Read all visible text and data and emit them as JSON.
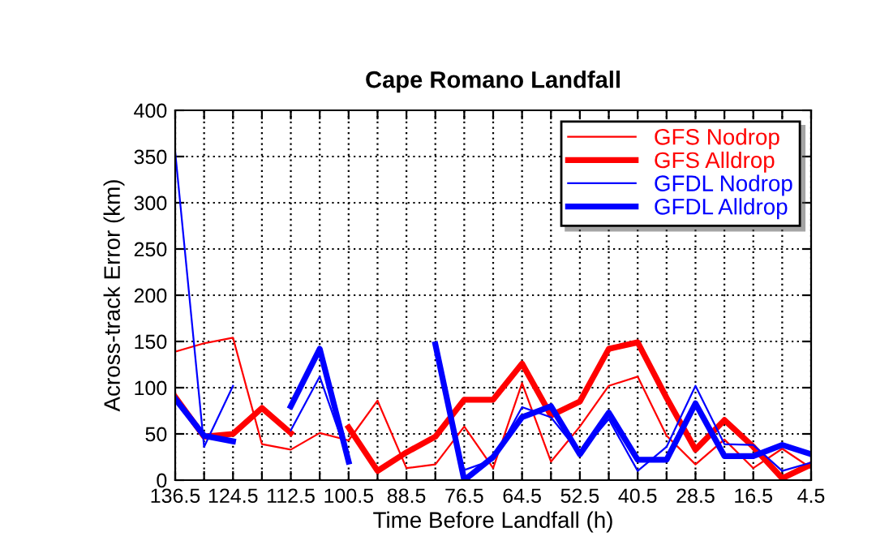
{
  "chart_data": {
    "type": "line",
    "title": "Cape Romano Landfall",
    "xlabel": "Time Before Landfall (h)",
    "ylabel": "Across-track Error (km)",
    "x": [
      136.5,
      130.5,
      124.5,
      118.5,
      112.5,
      106.5,
      100.5,
      94.5,
      88.5,
      82.5,
      76.5,
      70.5,
      64.5,
      58.5,
      52.5,
      46.5,
      40.5,
      34.5,
      28.5,
      22.5,
      16.5,
      10.5,
      4.5
    ],
    "series": [
      {
        "name": "GFS Nodrop",
        "color": "#ff0000",
        "values": [
          139,
          148,
          154,
          39,
          33,
          51,
          43,
          86,
          13,
          17,
          58,
          13,
          105,
          20,
          58,
          102,
          112,
          48,
          17,
          44,
          13,
          34,
          13
        ]
      },
      {
        "name": "GFS Alldrop",
        "color": "#ff0000",
        "values": [
          90,
          47,
          50,
          78,
          51,
          null,
          57,
          10,
          30,
          47,
          87,
          87,
          126,
          70,
          85,
          142,
          149,
          89,
          33,
          65,
          36,
          2,
          17
        ]
      },
      {
        "name": "GFDL Nodrop",
        "color": "#0000ff",
        "values": [
          355,
          36,
          102,
          null,
          54,
          112,
          22,
          null,
          null,
          null,
          11,
          22,
          79,
          68,
          29,
          66,
          10,
          36,
          102,
          39,
          38,
          10,
          19
        ]
      },
      {
        "name": "GFDL Alldrop",
        "color": "#0000ff",
        "values": [
          88,
          48,
          42,
          null,
          80,
          142,
          20,
          null,
          null,
          147,
          0,
          25,
          68,
          80,
          28,
          73,
          22,
          22,
          83,
          26,
          26,
          38,
          28
        ]
      }
    ],
    "xlim": [
      136.5,
      4.5
    ],
    "ylim": [
      0,
      400
    ],
    "xticks": [
      136.5,
      {
        "value": 130.5,
        "label": null
      },
      124.5,
      {
        "value": 118.5,
        "label": null
      },
      112.5,
      {
        "value": 106.5,
        "label": null
      },
      100.5,
      {
        "value": 94.5,
        "label": null
      },
      88.5,
      {
        "value": 82.5,
        "label": null
      },
      76.5,
      {
        "value": 70.5,
        "label": null
      },
      64.5,
      {
        "value": 58.5,
        "label": null
      },
      52.5,
      {
        "value": 46.5,
        "label": null
      },
      40.5,
      {
        "value": 34.5,
        "label": null
      },
      28.5,
      {
        "value": 22.5,
        "label": null
      },
      16.5,
      {
        "value": 10.5,
        "label": null
      },
      4.5
    ],
    "yticks": [
      0,
      50,
      100,
      150,
      200,
      250,
      300,
      350,
      400
    ],
    "grid": true,
    "legend": "top right",
    "line_style": "solid",
    "marker": "none"
  }
}
